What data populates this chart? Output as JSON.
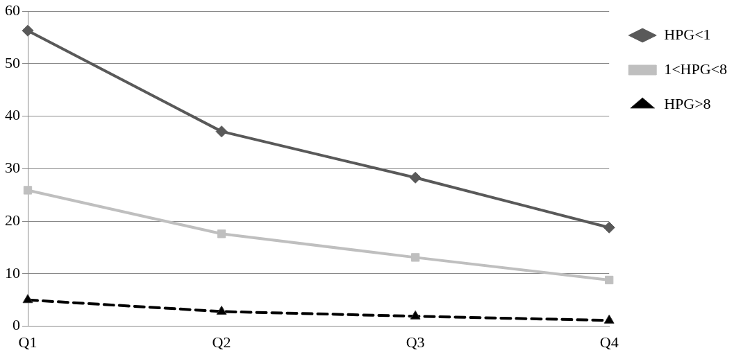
{
  "chart_data": {
    "type": "line",
    "categories": [
      "Q1",
      "Q2",
      "Q3",
      "Q4"
    ],
    "series": [
      {
        "name": "HPG<1",
        "color": "#595959",
        "marker": "diamond",
        "line_style": "solid",
        "values": [
          56.3,
          37.1,
          28.3,
          18.8
        ]
      },
      {
        "name": "1<HPG<8",
        "color": "#bfbfbf",
        "marker": "square",
        "line_style": "solid",
        "values": [
          25.9,
          17.6,
          13.1,
          8.8
        ]
      },
      {
        "name": "HPG>8",
        "color": "#000000",
        "marker": "triangle",
        "line_style": "dashed",
        "values": [
          5.0,
          2.8,
          1.9,
          1.1
        ]
      }
    ],
    "ylim": [
      0,
      60
    ],
    "yticks": [
      0,
      10,
      20,
      30,
      40,
      50,
      60
    ],
    "grid": "y",
    "legend": "right"
  }
}
